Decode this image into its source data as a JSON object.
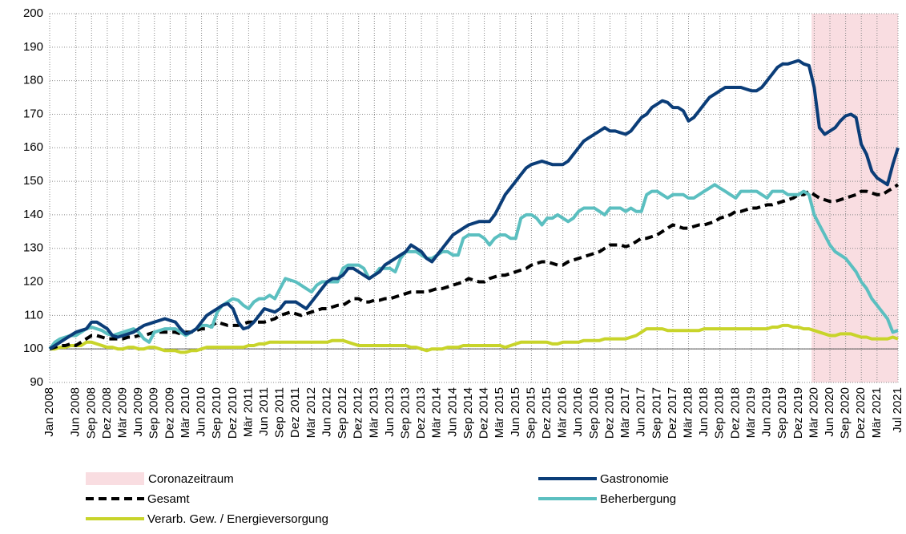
{
  "chart_data": {
    "type": "line",
    "categories": [
      "Jan 2008",
      null,
      null,
      null,
      null,
      "Jun 2008",
      null,
      null,
      "Sep 2008",
      null,
      null,
      "Dez 2008",
      null,
      null,
      "Mär 2009",
      null,
      null,
      "Jun 2009",
      null,
      null,
      "Sep 2009",
      null,
      null,
      "Dez 2009",
      null,
      null,
      "Mär 2010",
      null,
      null,
      "Jun 2010",
      null,
      null,
      "Sep 2010",
      null,
      null,
      "Dez 2010",
      null,
      null,
      "Mär 2011",
      null,
      null,
      "Jun 2011",
      null,
      null,
      "Sep 2011",
      null,
      null,
      "Dez 2011",
      null,
      null,
      "Mär 2012",
      null,
      null,
      "Jun 2012",
      null,
      null,
      "Sep 2012",
      null,
      null,
      "Dez 2012",
      null,
      null,
      "Mär 2013",
      null,
      null,
      "Jun 2013",
      null,
      null,
      "Sep 2013",
      null,
      null,
      "Dez 2013",
      null,
      null,
      "Mär 2014",
      null,
      null,
      "Jun 2014",
      null,
      null,
      "Sep 2014",
      null,
      null,
      "Dez 2014",
      null,
      null,
      "Mär 2015",
      null,
      null,
      "Jun 2015",
      null,
      null,
      "Sep 2015",
      null,
      null,
      "Dez 2015",
      null,
      null,
      "Mär 2016",
      null,
      null,
      "Jun 2016",
      null,
      null,
      "Sep 2016",
      null,
      null,
      "Dez 2016",
      null,
      null,
      "Mär 2017",
      null,
      null,
      "Jun 2017",
      null,
      null,
      "Sep 2017",
      null,
      null,
      "Dez 2017",
      null,
      null,
      "Mär 2018",
      null,
      null,
      "Jun 2018",
      null,
      null,
      "Sep 2018",
      null,
      null,
      "Dez 2018",
      null,
      null,
      "Mär 2019",
      null,
      null,
      "Jun 2019",
      null,
      null,
      "Sep 2019",
      null,
      null,
      "Dez 2019",
      null,
      null,
      "Mär 2020",
      null,
      null,
      "Jun 2020",
      null,
      null,
      "Sep 2020",
      null,
      null,
      "Dez 2020",
      null,
      null,
      "Mär 2021",
      null,
      null,
      null,
      "Jul 2021"
    ],
    "series": [
      {
        "name": "Gastronomie",
        "color": "#0b3d78",
        "style": "solid",
        "values": [
          100,
          101,
          102,
          103,
          104,
          105,
          105.5,
          106,
          108,
          108,
          107,
          106,
          104,
          103.5,
          104,
          104.5,
          105,
          106,
          107,
          107.5,
          108,
          108.5,
          109,
          108.5,
          108,
          106,
          104.5,
          105,
          106,
          108,
          110,
          111,
          112,
          113,
          113.5,
          112,
          108,
          106,
          106.5,
          108,
          110,
          112,
          111.5,
          111,
          112,
          114,
          114,
          114,
          113,
          112,
          114,
          116,
          118,
          120,
          121,
          121,
          122,
          124,
          124,
          123,
          122,
          121,
          122,
          123,
          125,
          126,
          127,
          128,
          129,
          131,
          130,
          129,
          127,
          126,
          128,
          130,
          132,
          134,
          135,
          136,
          137,
          137.5,
          138,
          138,
          138,
          140,
          143,
          146,
          148,
          150,
          152,
          154,
          155,
          155.5,
          156,
          155.5,
          155,
          155,
          155,
          156,
          158,
          160,
          162,
          163,
          164,
          165,
          166,
          165,
          165,
          164.5,
          164,
          165,
          167,
          169,
          170,
          172,
          173,
          174,
          173.5,
          172,
          172,
          171,
          168,
          169,
          171,
          173,
          175,
          176,
          177,
          178,
          178,
          178,
          178,
          177.5,
          177,
          177,
          178,
          180,
          182,
          184,
          185,
          185,
          185.5,
          186,
          185,
          184.5,
          178,
          166,
          164,
          165,
          166,
          168,
          169.5,
          170,
          169,
          161,
          158,
          153,
          151,
          150,
          149,
          155,
          160
        ]
      },
      {
        "name": "Gesamt",
        "color": "#000000",
        "style": "dashed",
        "values": [
          100,
          100.5,
          101,
          101,
          101.5,
          101,
          102,
          103,
          104,
          104,
          103.5,
          103,
          103,
          103,
          103,
          103.5,
          103.5,
          104,
          104,
          104.5,
          105,
          105,
          105,
          105,
          105,
          104.5,
          105,
          105,
          105.5,
          106,
          106,
          107,
          108,
          107.5,
          107,
          107,
          107,
          107.5,
          108,
          108,
          108,
          108,
          108.5,
          109,
          110,
          110.5,
          111,
          110.5,
          110,
          110.5,
          111,
          111.5,
          112,
          112,
          112.5,
          113,
          113,
          114,
          115,
          115,
          114,
          114,
          114.5,
          114.5,
          115,
          115,
          115.5,
          116,
          116.5,
          117,
          117,
          117,
          117,
          117.5,
          118,
          118,
          118.5,
          119,
          119.5,
          120,
          121,
          120.5,
          120,
          120,
          121,
          121.5,
          122,
          122,
          122.5,
          123,
          123.5,
          124,
          125,
          125.5,
          126,
          126,
          125.5,
          125,
          125,
          126,
          126.5,
          127,
          127.5,
          128,
          128.5,
          129,
          130,
          131,
          131,
          131,
          130.5,
          131,
          132,
          133,
          133,
          133.5,
          134,
          135,
          136,
          137,
          136.5,
          136,
          136,
          136.5,
          137,
          137,
          137.5,
          138,
          139,
          139.5,
          140,
          141,
          141,
          141.5,
          142,
          142,
          142.5,
          143,
          143,
          143.5,
          144,
          144.5,
          145,
          146,
          146,
          147,
          146,
          145,
          144.5,
          144,
          144,
          144.5,
          145,
          145.5,
          146,
          147,
          147,
          146.5,
          146,
          146,
          147,
          148,
          149
        ]
      },
      {
        "name": "Beherbergung",
        "color": "#5bbfc0",
        "style": "solid",
        "values": [
          100,
          102,
          103,
          103.5,
          104,
          104,
          105,
          106,
          106.5,
          106,
          105.5,
          104.5,
          104,
          104.5,
          105,
          105.5,
          106,
          105,
          103,
          102,
          105,
          105.5,
          106,
          106,
          106,
          105,
          104,
          105,
          106,
          107,
          107,
          106.5,
          111,
          113,
          114,
          115,
          114.5,
          113,
          112,
          114,
          115,
          115,
          116,
          115,
          118,
          121,
          120.5,
          120,
          119,
          118,
          117,
          119,
          120,
          120,
          120,
          120,
          124,
          125,
          125,
          125,
          124,
          121,
          122,
          124,
          124,
          124,
          123,
          127,
          129,
          129,
          129,
          128,
          127,
          127,
          128,
          129,
          129,
          128,
          128,
          133,
          134,
          134,
          134,
          133,
          131,
          133,
          134,
          134,
          133,
          133,
          139,
          140,
          140,
          139,
          137,
          139,
          139,
          140,
          139,
          138,
          139,
          141,
          142,
          142,
          142,
          141,
          140,
          142,
          142,
          142,
          141,
          142,
          141,
          141,
          146,
          147,
          147,
          146,
          145,
          146,
          146,
          146,
          145,
          145,
          146,
          147,
          148,
          149,
          148,
          147,
          146,
          145,
          147,
          147,
          147,
          147,
          146,
          145,
          147,
          147,
          147,
          146,
          146,
          146,
          147,
          146,
          140,
          137,
          134,
          131,
          129,
          128,
          127,
          125,
          123,
          120,
          118,
          115,
          113,
          111,
          109,
          105,
          105.5
        ]
      },
      {
        "name": "Verarb. Gew. / Energieversorgung",
        "color": "#c8d42a",
        "style": "solid",
        "values": [
          100,
          100,
          100.5,
          100.5,
          101,
          101,
          101,
          102,
          102,
          101.5,
          101,
          100.5,
          100.5,
          100,
          100,
          100.5,
          100.5,
          100,
          100,
          100.5,
          100.5,
          100,
          99.5,
          99.5,
          99.5,
          99,
          99,
          99.5,
          99.5,
          100,
          100.5,
          100.5,
          100.5,
          100.5,
          100.5,
          100.5,
          100.5,
          100.5,
          101,
          101,
          101.5,
          101.5,
          102,
          102,
          102,
          102,
          102,
          102,
          102,
          102,
          102,
          102,
          102,
          102,
          102.5,
          102.5,
          102.5,
          102,
          101.5,
          101,
          101,
          101,
          101,
          101,
          101,
          101,
          101,
          101,
          101,
          100.5,
          100.5,
          100,
          99.5,
          100,
          100,
          100,
          100.5,
          100.5,
          100.5,
          101,
          101,
          101,
          101,
          101,
          101,
          101,
          101,
          100.5,
          101,
          101.5,
          102,
          102,
          102,
          102,
          102,
          102,
          101.5,
          101.5,
          102,
          102,
          102,
          102,
          102.5,
          102.5,
          102.5,
          102.5,
          103,
          103,
          103,
          103,
          103,
          103.5,
          104,
          105,
          106,
          106,
          106,
          106,
          105.5,
          105.5,
          105.5,
          105.5,
          105.5,
          105.5,
          105.5,
          106,
          106,
          106,
          106,
          106,
          106,
          106,
          106,
          106,
          106,
          106,
          106,
          106,
          106.5,
          106.5,
          107,
          107,
          106.5,
          106.5,
          106,
          106,
          105.5,
          105,
          104.5,
          104,
          104,
          104.5,
          104.5,
          104.5,
          104,
          103.5,
          103.5,
          103,
          103,
          103,
          103,
          103.5,
          103
        ]
      }
    ],
    "shaded_region": {
      "name": "Coronazeitraum",
      "start": "Mär 2020",
      "color": "#f9dde1"
    },
    "reference_line": 100,
    "ylim": [
      90,
      200
    ],
    "yticks": [
      90,
      100,
      110,
      120,
      130,
      140,
      150,
      160,
      170,
      180,
      190,
      200
    ],
    "grid": true
  }
}
